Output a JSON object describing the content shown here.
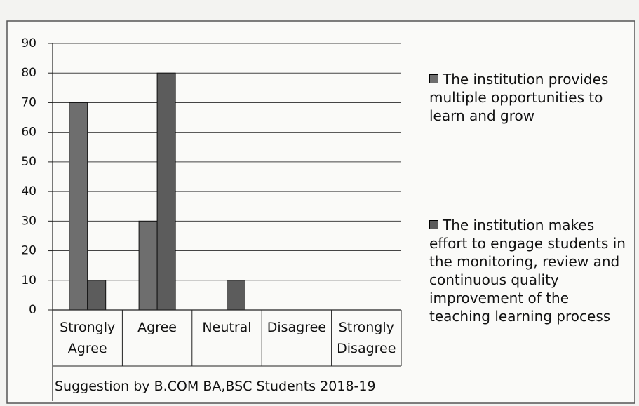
{
  "chart_data": {
    "type": "bar",
    "categories": [
      "Strongly Agree",
      "Agree",
      "Neutral",
      "Disagree",
      "Strongly Disagree"
    ],
    "series": [
      {
        "name": "The institution provides multiple opportunities to learn and grow",
        "color": "#6e6e6e",
        "values": [
          70,
          30,
          0,
          0,
          0
        ]
      },
      {
        "name": "The institution makes effort to engage students in the monitoring, review and continuous quality improvement of the teaching learning process",
        "color": "#5c5c5c",
        "values": [
          10,
          80,
          10,
          0,
          0
        ]
      }
    ],
    "xlabel": "Suggestion by B.COM BA,BSC Students 2018-19",
    "ylim": [
      0,
      90
    ],
    "yticks": [
      0,
      10,
      20,
      30,
      40,
      50,
      60,
      70,
      80,
      90
    ],
    "grid": true,
    "legend": "right"
  }
}
